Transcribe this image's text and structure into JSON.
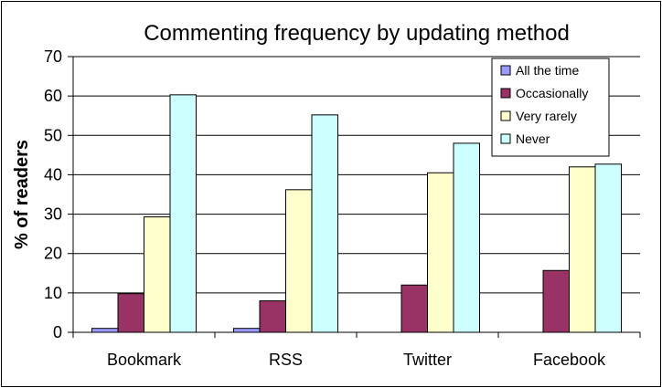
{
  "chart_data": {
    "type": "bar",
    "title": "Commenting frequency by updating method",
    "xlabel": "",
    "ylabel": "% of readers",
    "ylim": [
      0,
      70
    ],
    "yticks": [
      0,
      10,
      20,
      30,
      40,
      50,
      60,
      70
    ],
    "grid": true,
    "legend_position": "top-right",
    "categories": [
      "Bookmark",
      "RSS",
      "Twitter",
      "Facebook"
    ],
    "series": [
      {
        "name": "All the time",
        "color": "#9999FF",
        "values": [
          1,
          1,
          0,
          0
        ]
      },
      {
        "name": "Occasionally",
        "color": "#993366",
        "values": [
          9.8,
          8,
          12,
          15.7
        ]
      },
      {
        "name": "Very rarely",
        "color": "#FFFFCC",
        "values": [
          29.3,
          36.2,
          40.5,
          42
        ]
      },
      {
        "name": "Never",
        "color": "#CCFFFF",
        "values": [
          60.3,
          55.2,
          48,
          42.7
        ]
      }
    ]
  }
}
